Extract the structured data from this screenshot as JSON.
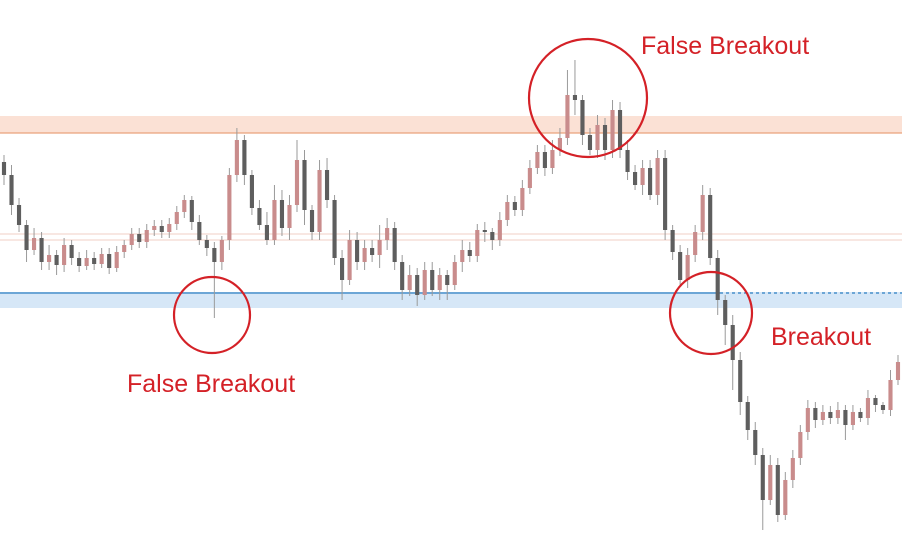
{
  "chart_data": {
    "type": "candlestick",
    "x_axis": {
      "shown": false
    },
    "y_axis": {
      "shown": false,
      "range": [
        0,
        543
      ],
      "inverted": true
    },
    "grid": false,
    "legend": "none",
    "colors": {
      "bull": "#c98c8c",
      "bear": "#5e5e5e",
      "wick": "#9a9a9a",
      "resistance_zone": "#fbe1d5",
      "resistance_line": "#e9a27c",
      "support_zone": "#d6e7f7",
      "support_line": "#2d7fc1",
      "mid_line": "#f1cfc4",
      "annotation": "#d42127"
    },
    "levels": [
      {
        "kind": "resistance",
        "zone": [
          116,
          133
        ],
        "line": 133
      },
      {
        "kind": "mid",
        "lines": [
          234,
          240
        ]
      },
      {
        "kind": "support",
        "zone": [
          292,
          308
        ],
        "line": 293,
        "dashed_from_x": 720
      }
    ],
    "candles": [
      [
        162,
        175,
        155,
        185
      ],
      [
        175,
        205,
        165,
        215
      ],
      [
        205,
        225,
        198,
        232
      ],
      [
        225,
        250,
        220,
        262
      ],
      [
        250,
        238,
        228,
        255
      ],
      [
        238,
        262,
        232,
        270
      ],
      [
        262,
        255,
        245,
        270
      ],
      [
        255,
        265,
        250,
        275
      ],
      [
        265,
        245,
        238,
        272
      ],
      [
        245,
        258,
        240,
        265
      ],
      [
        258,
        266,
        252,
        272
      ],
      [
        266,
        258,
        250,
        270
      ],
      [
        258,
        264,
        252,
        270
      ],
      [
        264,
        254,
        248,
        268
      ],
      [
        254,
        268,
        248,
        274
      ],
      [
        268,
        252,
        246,
        272
      ],
      [
        252,
        245,
        240,
        258
      ],
      [
        245,
        234,
        228,
        250
      ],
      [
        234,
        242,
        228,
        248
      ],
      [
        242,
        230,
        224,
        248
      ],
      [
        230,
        226,
        220,
        236
      ],
      [
        226,
        232,
        220,
        238
      ],
      [
        232,
        224,
        218,
        238
      ],
      [
        224,
        212,
        206,
        230
      ],
      [
        212,
        200,
        195,
        218
      ],
      [
        200,
        222,
        196,
        230
      ],
      [
        222,
        240,
        215,
        245
      ],
      [
        240,
        248,
        235,
        256
      ],
      [
        248,
        262,
        242,
        318
      ],
      [
        262,
        240,
        236,
        270
      ],
      [
        240,
        175,
        168,
        250
      ],
      [
        175,
        140,
        128,
        182
      ],
      [
        140,
        175,
        135,
        185
      ],
      [
        175,
        208,
        170,
        215
      ],
      [
        208,
        225,
        200,
        230
      ],
      [
        225,
        240,
        212,
        245
      ],
      [
        240,
        200,
        185,
        245
      ],
      [
        200,
        228,
        190,
        236
      ],
      [
        228,
        205,
        195,
        240
      ],
      [
        205,
        160,
        140,
        212
      ],
      [
        160,
        210,
        150,
        225
      ],
      [
        210,
        232,
        205,
        240
      ],
      [
        232,
        170,
        160,
        240
      ],
      [
        170,
        200,
        158,
        208
      ],
      [
        200,
        258,
        195,
        265
      ],
      [
        258,
        280,
        250,
        300
      ],
      [
        280,
        240,
        230,
        285
      ],
      [
        240,
        262,
        232,
        270
      ],
      [
        262,
        248,
        240,
        270
      ],
      [
        248,
        255,
        240,
        262
      ],
      [
        255,
        240,
        225,
        268
      ],
      [
        240,
        228,
        218,
        250
      ],
      [
        228,
        262,
        222,
        270
      ],
      [
        262,
        290,
        255,
        300
      ],
      [
        290,
        275,
        265,
        296
      ],
      [
        275,
        295,
        268,
        306
      ],
      [
        295,
        270,
        262,
        300
      ],
      [
        270,
        290,
        262,
        296
      ],
      [
        290,
        275,
        268,
        300
      ],
      [
        275,
        285,
        270,
        300
      ],
      [
        285,
        262,
        255,
        290
      ],
      [
        262,
        250,
        240,
        272
      ],
      [
        250,
        256,
        242,
        262
      ],
      [
        256,
        230,
        224,
        262
      ],
      [
        230,
        232,
        222,
        242
      ],
      [
        232,
        240,
        228,
        250
      ],
      [
        240,
        220,
        212,
        246
      ],
      [
        220,
        202,
        195,
        226
      ],
      [
        202,
        210,
        196,
        216
      ],
      [
        210,
        188,
        180,
        216
      ],
      [
        188,
        168,
        160,
        194
      ],
      [
        168,
        152,
        145,
        174
      ],
      [
        152,
        168,
        145,
        176
      ],
      [
        168,
        150,
        140,
        174
      ],
      [
        150,
        138,
        128,
        156
      ],
      [
        138,
        95,
        70,
        145
      ],
      [
        95,
        100,
        60,
        115
      ],
      [
        100,
        135,
        95,
        145
      ],
      [
        135,
        150,
        128,
        155
      ],
      [
        150,
        125,
        115,
        158
      ],
      [
        125,
        150,
        118,
        160
      ],
      [
        150,
        110,
        100,
        158
      ],
      [
        110,
        150,
        102,
        158
      ],
      [
        150,
        172,
        140,
        180
      ],
      [
        172,
        185,
        165,
        190
      ],
      [
        185,
        168,
        160,
        195
      ],
      [
        168,
        195,
        160,
        200
      ],
      [
        195,
        158,
        150,
        205
      ],
      [
        158,
        230,
        150,
        240
      ],
      [
        230,
        252,
        225,
        260
      ],
      [
        252,
        280,
        245,
        285
      ],
      [
        280,
        255,
        248,
        288
      ],
      [
        255,
        232,
        225,
        262
      ],
      [
        232,
        195,
        185,
        240
      ],
      [
        195,
        258,
        188,
        265
      ],
      [
        258,
        300,
        250,
        315
      ],
      [
        300,
        325,
        295,
        345
      ],
      [
        325,
        360,
        315,
        390
      ],
      [
        360,
        402,
        352,
        415
      ],
      [
        402,
        430,
        396,
        440
      ],
      [
        430,
        455,
        422,
        465
      ],
      [
        455,
        500,
        448,
        530
      ],
      [
        500,
        465,
        455,
        505
      ],
      [
        465,
        515,
        458,
        522
      ],
      [
        515,
        480,
        472,
        520
      ],
      [
        480,
        458,
        450,
        488
      ],
      [
        458,
        432,
        425,
        465
      ],
      [
        432,
        408,
        400,
        440
      ],
      [
        408,
        420,
        402,
        428
      ],
      [
        420,
        412,
        405,
        425
      ],
      [
        412,
        418,
        406,
        424
      ],
      [
        418,
        410,
        402,
        424
      ],
      [
        410,
        425,
        405,
        440
      ],
      [
        425,
        412,
        405,
        430
      ],
      [
        412,
        418,
        408,
        422
      ],
      [
        418,
        398,
        390,
        425
      ],
      [
        398,
        405,
        395,
        412
      ],
      [
        405,
        410,
        402,
        414
      ],
      [
        410,
        380,
        370,
        416
      ],
      [
        380,
        362,
        355,
        385
      ]
    ],
    "annotations": [
      {
        "text": "False Breakout",
        "circle_center": [
          212,
          315
        ],
        "label_position": "below"
      },
      {
        "text": "False Breakout",
        "circle_center": [
          588,
          98
        ],
        "label_position": "top-right"
      },
      {
        "text": "Breakout",
        "circle_center": [
          711,
          313
        ],
        "label_position": "right"
      }
    ]
  }
}
